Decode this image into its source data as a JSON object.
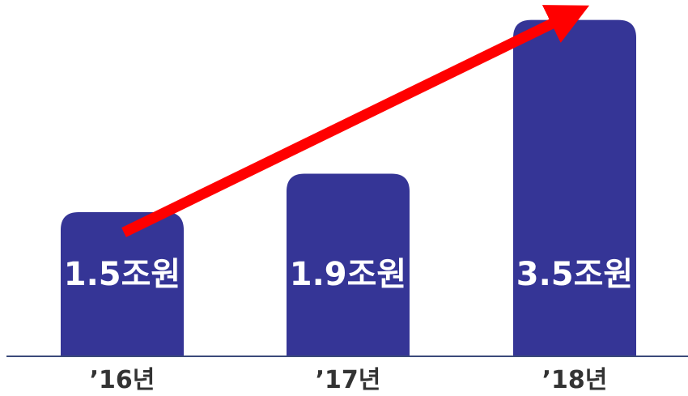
{
  "chart_data": {
    "type": "bar",
    "categories": [
      "’16년",
      "’17년",
      "’18년"
    ],
    "values": [
      1.5,
      1.9,
      3.5
    ],
    "value_labels": [
      "1.5조원",
      "1.9조원",
      "3.5조원"
    ],
    "title": "",
    "xlabel": "",
    "ylabel": "",
    "grid": false,
    "legend": "none",
    "annotations": [
      "red upward trend arrow"
    ]
  },
  "colors": {
    "bar": "#353596",
    "axis": "#3b4a7a",
    "arrow": "#ff0000",
    "value_label": "#ffffff",
    "tick_label": "#333333"
  }
}
